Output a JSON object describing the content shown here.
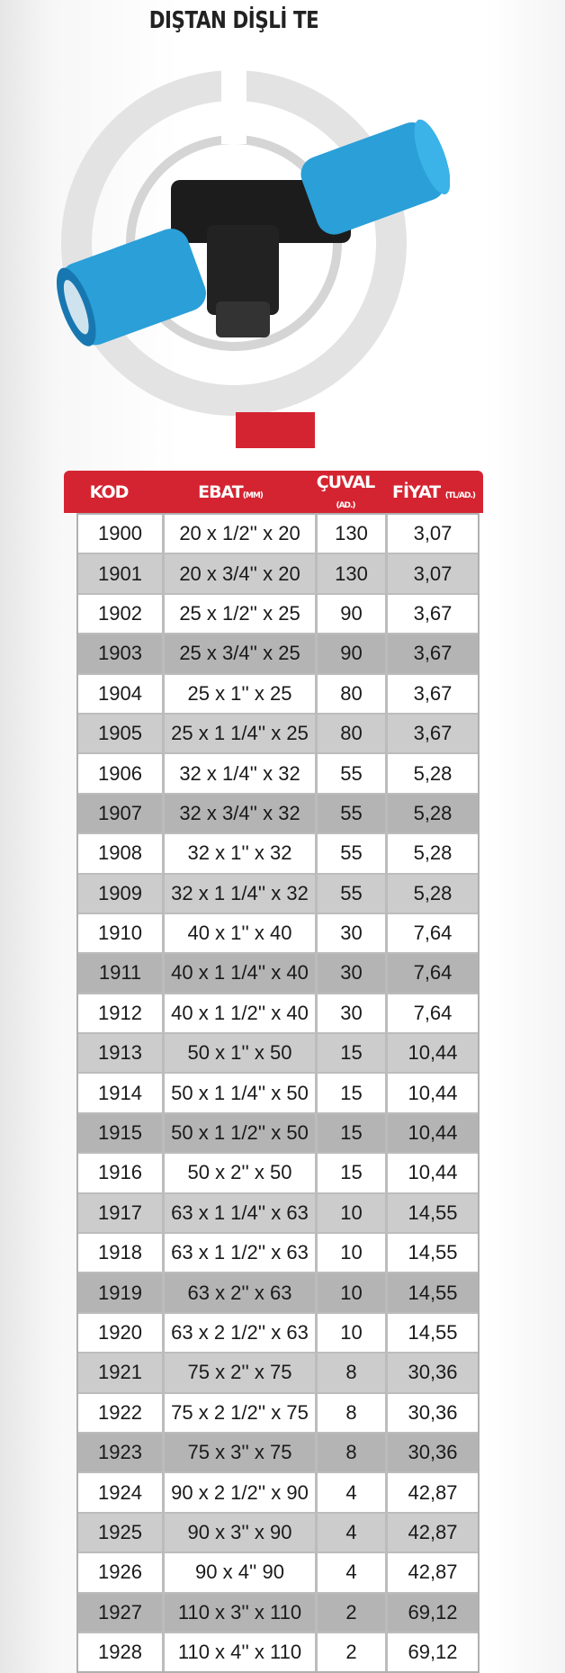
{
  "title": "DIŞTAN DİŞLİ TE",
  "colors": {
    "accent_red": "#d52431",
    "fitting_blue": "#2a9fd8",
    "row_white": "#ffffff",
    "row_light": "#cccccc",
    "row_dark": "#b4b4b4"
  },
  "table": {
    "headers": [
      {
        "label": "KOD",
        "unit": ""
      },
      {
        "label": "EBAT",
        "unit": "(MM)"
      },
      {
        "label": "ÇUVAL",
        "unit": "(AD.)"
      },
      {
        "label": "FİYAT",
        "unit": "(TL/AD.)"
      }
    ],
    "rows": [
      {
        "kod": "1900",
        "ebat": "20 x 1/2'' x 20",
        "cuval": "130",
        "fiyat": "3,07"
      },
      {
        "kod": "1901",
        "ebat": "20 x 3/4'' x 20",
        "cuval": "130",
        "fiyat": "3,07"
      },
      {
        "kod": "1902",
        "ebat": "25 x 1/2'' x 25",
        "cuval": "90",
        "fiyat": "3,67"
      },
      {
        "kod": "1903",
        "ebat": "25 x 3/4'' x 25",
        "cuval": "90",
        "fiyat": "3,67"
      },
      {
        "kod": "1904",
        "ebat": "25 x 1'' x 25",
        "cuval": "80",
        "fiyat": "3,67"
      },
      {
        "kod": "1905",
        "ebat": "25 x 1 1/4'' x 25",
        "cuval": "80",
        "fiyat": "3,67"
      },
      {
        "kod": "1906",
        "ebat": "32 x 1/4'' x 32",
        "cuval": "55",
        "fiyat": "5,28"
      },
      {
        "kod": "1907",
        "ebat": "32 x 3/4'' x 32",
        "cuval": "55",
        "fiyat": "5,28"
      },
      {
        "kod": "1908",
        "ebat": "32 x 1'' x 32",
        "cuval": "55",
        "fiyat": "5,28"
      },
      {
        "kod": "1909",
        "ebat": "32 x 1 1/4'' x 32",
        "cuval": "55",
        "fiyat": "5,28"
      },
      {
        "kod": "1910",
        "ebat": "40 x 1'' x 40",
        "cuval": "30",
        "fiyat": "7,64"
      },
      {
        "kod": "1911",
        "ebat": "40 x 1 1/4'' x 40",
        "cuval": "30",
        "fiyat": "7,64"
      },
      {
        "kod": "1912",
        "ebat": "40 x 1 1/2'' x 40",
        "cuval": "30",
        "fiyat": "7,64"
      },
      {
        "kod": "1913",
        "ebat": "50 x 1'' x 50",
        "cuval": "15",
        "fiyat": "10,44"
      },
      {
        "kod": "1914",
        "ebat": "50 x 1 1/4'' x 50",
        "cuval": "15",
        "fiyat": "10,44"
      },
      {
        "kod": "1915",
        "ebat": "50 x 1 1/2'' x 50",
        "cuval": "15",
        "fiyat": "10,44"
      },
      {
        "kod": "1916",
        "ebat": "50 x 2'' x 50",
        "cuval": "15",
        "fiyat": "10,44"
      },
      {
        "kod": "1917",
        "ebat": "63 x 1 1/4'' x 63",
        "cuval": "10",
        "fiyat": "14,55"
      },
      {
        "kod": "1918",
        "ebat": "63 x 1 1/2'' x 63",
        "cuval": "10",
        "fiyat": "14,55"
      },
      {
        "kod": "1919",
        "ebat": "63 x 2'' x 63",
        "cuval": "10",
        "fiyat": "14,55"
      },
      {
        "kod": "1920",
        "ebat": "63 x 2 1/2'' x 63",
        "cuval": "10",
        "fiyat": "14,55"
      },
      {
        "kod": "1921",
        "ebat": "75 x 2'' x 75",
        "cuval": "8",
        "fiyat": "30,36"
      },
      {
        "kod": "1922",
        "ebat": "75 x 2 1/2'' x 75",
        "cuval": "8",
        "fiyat": "30,36"
      },
      {
        "kod": "1923",
        "ebat": "75 x 3'' x 75",
        "cuval": "8",
        "fiyat": "30,36"
      },
      {
        "kod": "1924",
        "ebat": "90 x 2 1/2'' x 90",
        "cuval": "4",
        "fiyat": "42,87"
      },
      {
        "kod": "1925",
        "ebat": "90 x 3'' x 90",
        "cuval": "4",
        "fiyat": "42,87"
      },
      {
        "kod": "1926",
        "ebat": "90 x 4'' 90",
        "cuval": "4",
        "fiyat": "42,87"
      },
      {
        "kod": "1927",
        "ebat": "110 x 3'' x 110",
        "cuval": "2",
        "fiyat": "69,12"
      },
      {
        "kod": "1928",
        "ebat": "110 x 4'' x 110",
        "cuval": "2",
        "fiyat": "69,12"
      }
    ]
  }
}
